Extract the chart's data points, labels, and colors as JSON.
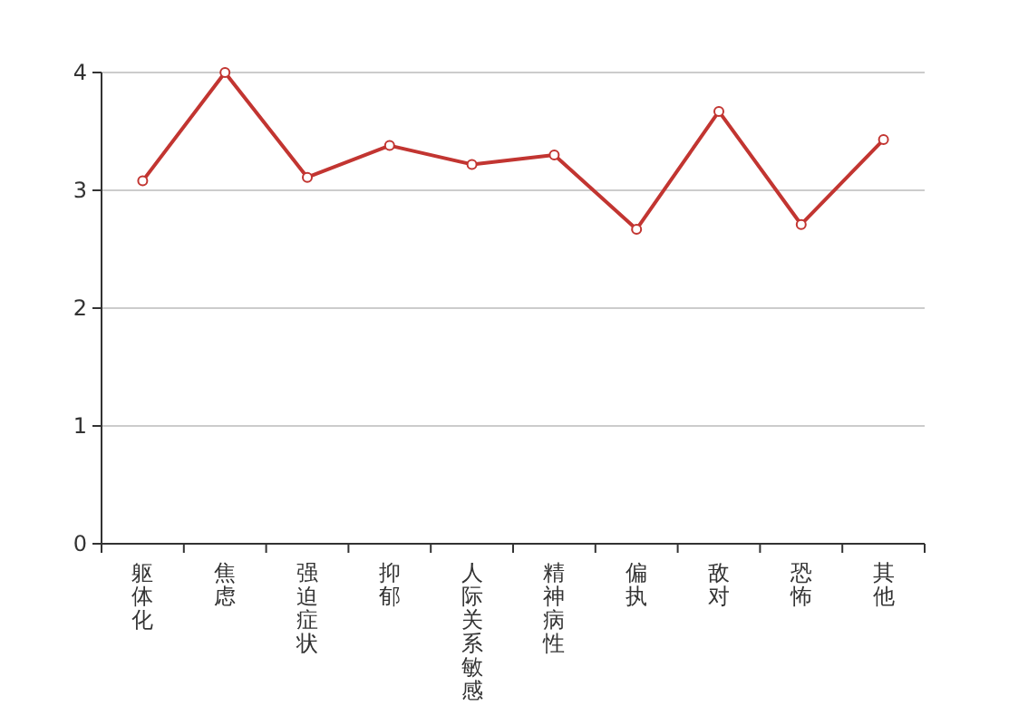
{
  "chart_data": {
    "type": "line",
    "categories": [
      "躯体化",
      "焦虑",
      "强迫症状",
      "抑郁",
      "人际关系敏感",
      "精神病性",
      "偏执",
      "敌对",
      "恐怖",
      "其他"
    ],
    "series": [
      {
        "color": "#c23531",
        "values": [
          3.08,
          4.0,
          3.11,
          3.38,
          3.22,
          3.3,
          2.67,
          3.67,
          2.71,
          3.43
        ]
      }
    ],
    "ylim": [
      0,
      4
    ],
    "yticks": [
      0,
      1,
      2,
      3,
      4
    ],
    "grid": "y",
    "marker": "circle",
    "line_style": "solid"
  }
}
